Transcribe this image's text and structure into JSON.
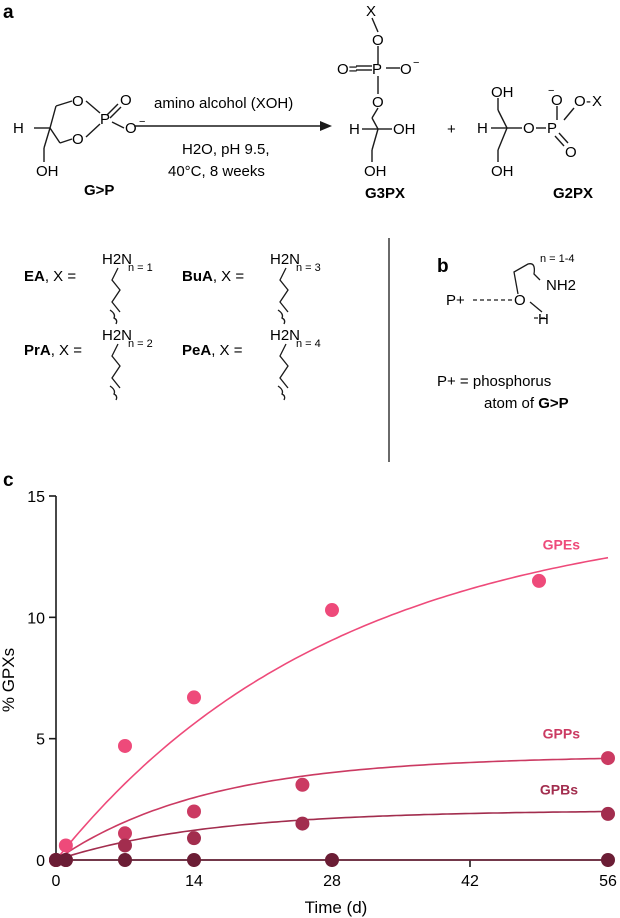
{
  "panels": {
    "a": "a",
    "b": "b",
    "c": "c"
  },
  "scheme": {
    "reactant_label": "G>P",
    "reagent": "amino alcohol (XOH)",
    "conditions_line1": "H2O, pH 9.5,",
    "conditions_line2": "40°C, 8 weeks",
    "product1_label": "G3PX",
    "product2_label": "G2PX",
    "plus": "+",
    "atoms": {
      "H": "H",
      "O": "O",
      "P": "P",
      "OH": "OH",
      "X": "X",
      "Ominus": "O",
      "neg": "−",
      "Oeq": "O="
    }
  },
  "x_groups": [
    {
      "abbr": "EA",
      "suffix": ", X =",
      "n_label": "n = 1"
    },
    {
      "abbr": "BuA",
      "suffix": ", X =",
      "n_label": "n = 3"
    },
    {
      "abbr": "PrA",
      "suffix": ", X =",
      "n_label": "n = 2"
    },
    {
      "abbr": "PeA",
      "suffix": ", X =",
      "n_label": "n = 4"
    }
  ],
  "amine": {
    "H2N": "H2N"
  },
  "panel_b": {
    "n_label": "n = 1-4",
    "NH2": "NH2",
    "P_plus": "P+",
    "O": "O",
    "H": "H",
    "legend_line1": "P+ = phosphorus",
    "legend_line2_prefix": "atom of ",
    "legend_line2_bold": "G>P"
  },
  "chart_data": {
    "type": "scatter",
    "title": "",
    "xlabel": "Time (d)",
    "ylabel": "% GPXs",
    "xlim": [
      0,
      56
    ],
    "ylim": [
      0,
      15
    ],
    "xticks": [
      0,
      14,
      28,
      42,
      56
    ],
    "yticks": [
      0,
      5,
      10,
      15
    ],
    "grid": false,
    "fit_lines": true,
    "series": [
      {
        "name": "GPEs",
        "color": "#ee4a7a",
        "x": [
          0,
          1,
          7,
          14,
          28,
          49
        ],
        "y": [
          0.0,
          0.6,
          4.7,
          6.7,
          10.3,
          11.5
        ],
        "fit": {
          "plateau": 14.5,
          "k": 0.035
        }
      },
      {
        "name": "GPPs",
        "color": "#cb3a62",
        "x": [
          0,
          1,
          7,
          14,
          25,
          56
        ],
        "y": [
          0.0,
          0.0,
          1.1,
          2.0,
          3.1,
          4.2
        ],
        "fit": {
          "plateau": 4.3,
          "k": 0.065
        }
      },
      {
        "name": "GPBs",
        "color": "#a22d4e",
        "x": [
          0,
          1,
          7,
          14,
          25,
          56
        ],
        "y": [
          0.0,
          0.0,
          0.6,
          0.9,
          1.5,
          1.9
        ],
        "fit": {
          "plateau": 2.05,
          "k": 0.065
        }
      },
      {
        "name": "",
        "color": "#6b1d35",
        "x": [
          0,
          1,
          7,
          14,
          28,
          56
        ],
        "y": [
          0.0,
          0.0,
          0.0,
          0.0,
          0.0,
          0.0
        ],
        "fit": {
          "plateau": 0.0,
          "k": 0.065
        }
      }
    ]
  }
}
